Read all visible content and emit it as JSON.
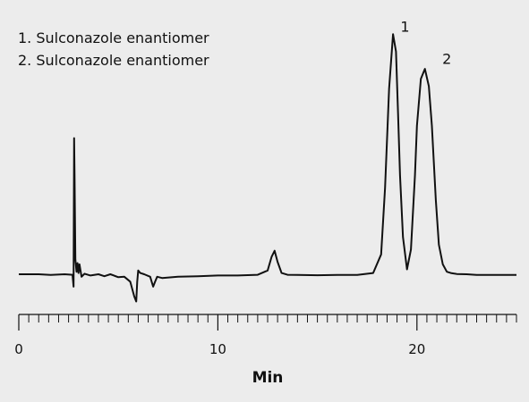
{
  "chart_data": {
    "type": "line",
    "title": "",
    "xlabel": "Min",
    "ylabel": "",
    "xlim": [
      0,
      25
    ],
    "ylim": [
      -0.06,
      1.0
    ],
    "grid": false,
    "legend": {
      "placement": "top-left",
      "entries": [
        "1. Sulconazole enantiomer",
        "2. Sulconazole enantiomer"
      ]
    },
    "x_ticks": [
      {
        "value": 0,
        "label": "0"
      },
      {
        "value": 10,
        "label": "10"
      },
      {
        "value": 20,
        "label": "20"
      }
    ],
    "minor_tick_step": 0.5,
    "peak_labels": [
      {
        "text": "1",
        "x": 19.4,
        "y": 0.98
      },
      {
        "text": "2",
        "x": 21.5,
        "y": 0.85
      }
    ],
    "series": [
      {
        "x": [
          0,
          1.0,
          1.6,
          2.3,
          2.7,
          2.75,
          2.78,
          2.8,
          2.84,
          2.9,
          2.95,
          3.0,
          3.05,
          3.15,
          3.3,
          3.6,
          4.0,
          4.3,
          4.6,
          5.0,
          5.3,
          5.6,
          5.8,
          5.9,
          5.95,
          6.0,
          6.1,
          6.3,
          6.6,
          6.75,
          6.85,
          6.95,
          7.2,
          8.0,
          9.0,
          10.0,
          11.0,
          12.0,
          12.5,
          12.7,
          12.85,
          13.0,
          13.2,
          13.5,
          14.0,
          15.0,
          16.0,
          17.0,
          17.8,
          18.2,
          18.4,
          18.6,
          18.8,
          18.95,
          19.05,
          19.15,
          19.3,
          19.5,
          19.7,
          19.9,
          20.0,
          20.2,
          20.4,
          20.6,
          20.75,
          20.85,
          20.95,
          21.1,
          21.3,
          21.5,
          21.7,
          22.0,
          22.5,
          23.0,
          24.0,
          25.0
        ],
        "y": [
          0.0,
          0.0,
          -0.003,
          0.0,
          -0.002,
          -0.05,
          0.55,
          0.4,
          0.06,
          0.01,
          0.045,
          0.005,
          0.04,
          -0.01,
          0.002,
          -0.005,
          0.0,
          -0.008,
          0.0,
          -0.012,
          -0.01,
          -0.03,
          -0.09,
          -0.11,
          -0.03,
          0.015,
          0.005,
          0.0,
          -0.01,
          -0.05,
          -0.03,
          -0.01,
          -0.015,
          -0.01,
          -0.008,
          -0.005,
          -0.005,
          -0.002,
          0.015,
          0.07,
          0.095,
          0.05,
          0.005,
          -0.002,
          -0.003,
          -0.004,
          -0.003,
          -0.003,
          0.005,
          0.08,
          0.35,
          0.75,
          0.97,
          0.9,
          0.65,
          0.4,
          0.15,
          0.02,
          0.1,
          0.4,
          0.6,
          0.79,
          0.83,
          0.76,
          0.6,
          0.45,
          0.3,
          0.12,
          0.04,
          0.01,
          0.005,
          0.001,
          0.0,
          -0.003,
          -0.003,
          -0.003
        ]
      }
    ]
  }
}
